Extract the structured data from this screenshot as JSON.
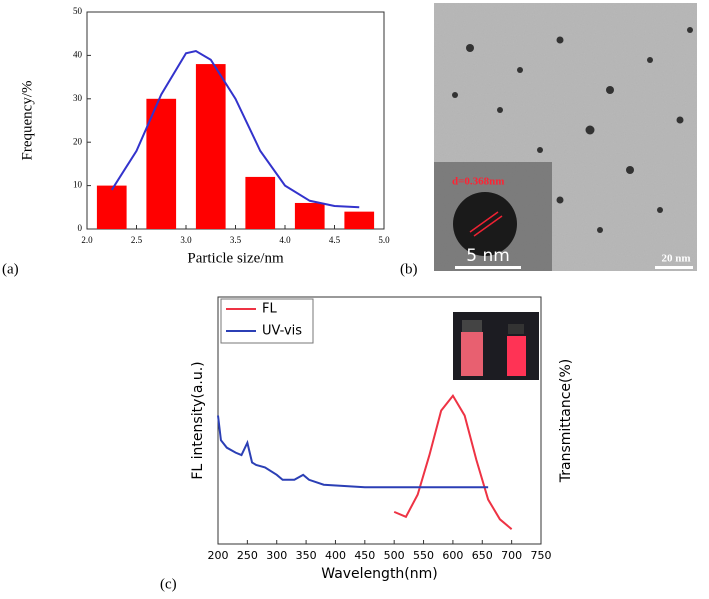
{
  "chart_data": [
    {
      "type": "bar",
      "panel_label": "(a)",
      "xlabel": "Particle size/nm",
      "ylabel": "Frequency/%",
      "x": [
        2.25,
        2.75,
        3.25,
        3.75,
        4.25,
        4.75
      ],
      "values": [
        10,
        30,
        38,
        12,
        6,
        4
      ],
      "color": "#ff0000",
      "fit": {
        "color": "#3333cc",
        "x": [
          2.25,
          2.5,
          2.75,
          3.0,
          3.1,
          3.25,
          3.5,
          3.75,
          4.0,
          4.25,
          4.5,
          4.75
        ],
        "values": [
          9,
          18,
          31,
          40.5,
          41,
          39,
          30,
          18,
          10,
          6.5,
          5.3,
          5
        ]
      },
      "xlim": [
        2.0,
        5.0
      ],
      "ylim": [
        0,
        50
      ],
      "xticks": [
        {
          "value": 2.0,
          "label": "2.0"
        },
        {
          "value": 2.5,
          "label": "2.5"
        },
        {
          "value": 3.0,
          "label": "3.0"
        },
        {
          "value": 3.5,
          "label": "3.5"
        },
        {
          "value": 4.0,
          "label": "4.0"
        },
        {
          "value": 4.5,
          "label": "4.5"
        },
        {
          "value": 5.0,
          "label": "5.0"
        }
      ],
      "yticks": [
        0,
        10,
        20,
        30,
        40,
        50
      ]
    },
    {
      "type": "image",
      "panel_label": "(b)",
      "annotations": [
        "d=0.368nm",
        "5 nm",
        "20 nm"
      ]
    },
    {
      "type": "line",
      "panel_label": "(c)",
      "xlabel": "Wavelength(nm)",
      "ylabel": "FL intensity(a.u.)",
      "y2label": "Transmittance(%)",
      "xlim": [
        200,
        750
      ],
      "ylim": [
        0,
        100
      ],
      "xticks": [
        200,
        250,
        300,
        350,
        400,
        450,
        500,
        550,
        600,
        650,
        700,
        750
      ],
      "legend": "upper left",
      "series": [
        {
          "name": "FL",
          "color": "#ee3344",
          "x": [
            500,
            520,
            540,
            560,
            580,
            600,
            620,
            640,
            660,
            680,
            700
          ],
          "values": [
            13,
            11,
            20,
            36,
            54,
            60,
            52,
            34,
            18,
            10,
            6
          ]
        },
        {
          "name": "UV-vis",
          "color": "#2b3fb5",
          "x": [
            200,
            205,
            215,
            230,
            240,
            250,
            258,
            265,
            280,
            300,
            310,
            330,
            345,
            355,
            380,
            450,
            660
          ],
          "values": [
            52,
            42,
            39,
            37,
            36,
            41,
            33,
            32,
            31,
            28,
            26,
            26,
            28,
            26,
            24,
            23,
            23
          ]
        }
      ]
    }
  ]
}
